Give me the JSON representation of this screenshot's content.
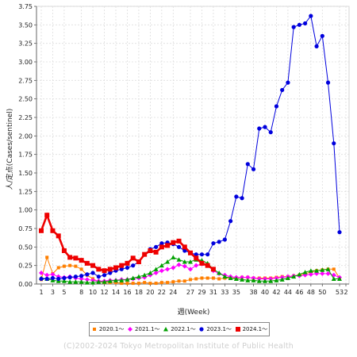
{
  "chart_data": {
    "type": "line",
    "xlabel": "週(Week)",
    "ylabel": "人/定点(Cases/sentinel)",
    "ylim": [
      0,
      3.75
    ],
    "yticks": [
      "0.00",
      "0.25",
      "0.50",
      "0.75",
      "1.00",
      "1.25",
      "1.50",
      "1.75",
      "2.00",
      "2.25",
      "2.50",
      "2.75",
      "3.00",
      "3.25",
      "3.50",
      "3.75"
    ],
    "xticks": [
      "1",
      "3",
      "5",
      "8",
      "10",
      "12",
      "14",
      "16",
      "18",
      "20",
      "22",
      "24",
      "27",
      "29",
      "31",
      "33",
      "35",
      "38",
      "40",
      "42",
      "44",
      "46",
      "48",
      "50",
      "53",
      "2"
    ],
    "grid": true,
    "legend_position": "bottom",
    "series": [
      {
        "name": "2020.1～",
        "color": "#ff7f00",
        "marker": "square-small",
        "values": [
          0.06,
          0.36,
          0.14,
          0.22,
          0.24,
          0.25,
          0.24,
          0.2,
          0.12,
          0.07,
          0.03,
          0.02,
          0.02,
          0.02,
          0.01,
          0.01,
          0.01,
          0.01,
          0.02,
          0.01,
          0.01,
          0.02,
          0.02,
          0.03,
          0.04,
          0.04,
          0.06,
          0.07,
          0.08,
          0.08,
          0.08,
          0.07,
          0.08,
          0.08,
          0.08,
          0.09,
          0.09,
          0.08,
          0.08,
          0.08,
          0.08,
          0.09,
          0.1,
          0.1,
          0.11,
          0.12,
          0.14,
          0.16,
          0.18,
          0.19,
          0.2,
          0.2,
          0.08
        ]
      },
      {
        "name": "2021.1～",
        "color": "#ff00ff",
        "marker": "diamond",
        "values": [
          0.15,
          0.12,
          0.13,
          0.1,
          0.09,
          0.1,
          0.08,
          0.07,
          0.06,
          0.05,
          0.04,
          0.04,
          0.05,
          0.05,
          0.06,
          0.06,
          0.07,
          0.08,
          0.09,
          0.12,
          0.15,
          0.18,
          0.2,
          0.22,
          0.26,
          0.24,
          0.2,
          0.25,
          0.27,
          0.26,
          0.18,
          0.14,
          0.12,
          0.1,
          0.09,
          0.09,
          0.09,
          0.08,
          0.07,
          0.07,
          0.07,
          0.08,
          0.09,
          0.1,
          0.11,
          0.11,
          0.12,
          0.13,
          0.14,
          0.14,
          0.14,
          0.12,
          0.09
        ]
      },
      {
        "name": "2022.1～",
        "color": "#00a000",
        "marker": "triangle",
        "values": [
          0.08,
          0.07,
          0.05,
          0.04,
          0.04,
          0.03,
          0.03,
          0.03,
          0.02,
          0.02,
          0.03,
          0.03,
          0.04,
          0.05,
          0.05,
          0.06,
          0.08,
          0.1,
          0.12,
          0.15,
          0.2,
          0.25,
          0.3,
          0.36,
          0.33,
          0.3,
          0.3,
          0.33,
          0.32,
          0.28,
          0.2,
          0.15,
          0.1,
          0.08,
          0.07,
          0.06,
          0.05,
          0.05,
          0.04,
          0.04,
          0.04,
          0.05,
          0.06,
          0.08,
          0.1,
          0.13,
          0.16,
          0.18,
          0.18,
          0.19,
          0.2,
          0.07,
          0.07
        ]
      },
      {
        "name": "2023.1～",
        "color": "#0000dd",
        "marker": "circle",
        "values": [
          0.07,
          0.07,
          0.08,
          0.07,
          0.08,
          0.09,
          0.1,
          0.11,
          0.13,
          0.15,
          0.1,
          0.12,
          0.15,
          0.18,
          0.2,
          0.22,
          0.25,
          0.3,
          0.4,
          0.47,
          0.5,
          0.55,
          0.56,
          0.54,
          0.5,
          0.45,
          0.42,
          0.4,
          0.4,
          0.4,
          0.55,
          0.57,
          0.6,
          0.85,
          1.18,
          1.16,
          1.62,
          1.55,
          2.1,
          2.12,
          2.05,
          2.4,
          2.62,
          2.72,
          3.47,
          3.5,
          3.52,
          3.62,
          3.21,
          3.35,
          2.72,
          1.9,
          0.7
        ]
      },
      {
        "name": "2024.1～",
        "color": "#ee0000",
        "marker": "square-large",
        "values": [
          0.72,
          0.93,
          0.72,
          0.65,
          0.45,
          0.36,
          0.35,
          0.32,
          0.28,
          0.25,
          0.2,
          0.18,
          0.2,
          0.22,
          0.25,
          0.28,
          0.35,
          0.3,
          0.4,
          0.45,
          0.43,
          0.5,
          0.52,
          0.56,
          0.58,
          0.5,
          0.42,
          0.35,
          0.28,
          0.25,
          0.2
        ]
      }
    ]
  },
  "copyright": "(C)2002-2024 Tokyo Metropolitan Institute of Public Health"
}
